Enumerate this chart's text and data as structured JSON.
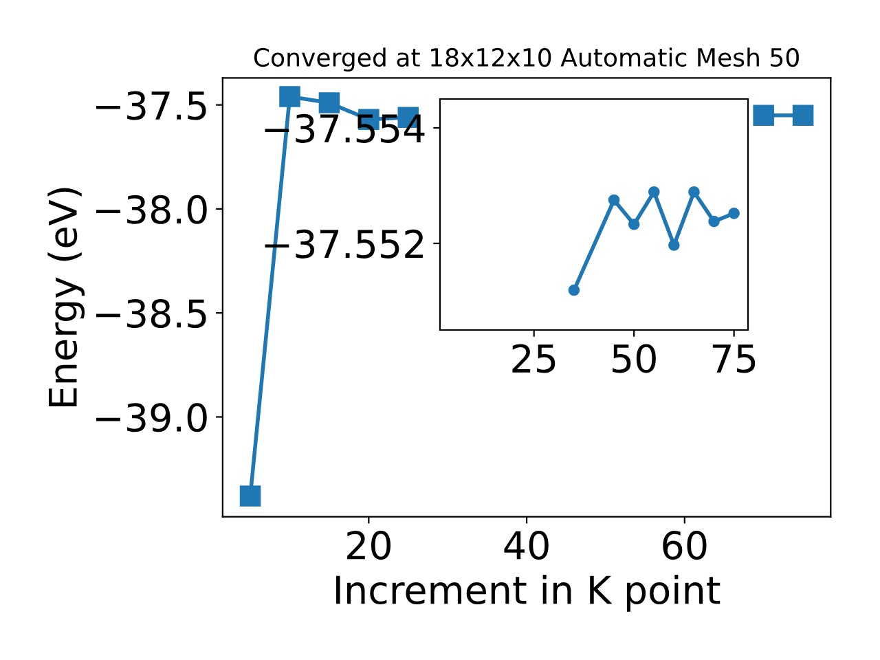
{
  "chart_data": [
    {
      "type": "line",
      "title": "Converged at 18x12x10 Automatic Mesh 50",
      "xlabel": "Increment in K point",
      "ylabel": "Energy (eV)",
      "x": [
        5,
        10,
        15,
        20,
        25,
        30,
        35,
        40,
        45,
        50,
        55,
        60,
        65,
        70,
        75
      ],
      "series": [
        {
          "color": "#1f77b4",
          "values": [
            -39.38,
            -37.46,
            -37.49,
            -37.57,
            -37.56,
            null,
            null,
            null,
            null,
            null,
            null,
            null,
            null,
            -37.55,
            -37.55
          ]
        }
      ],
      "marker": "square",
      "line_style": "solid",
      "grid": false,
      "legend": false,
      "xlim": [
        1.5,
        78.5
      ],
      "xticks": [
        20,
        40,
        60
      ],
      "ylim": [
        -39.48,
        -37.37
      ],
      "yticks": [
        {
          "value": -39.0,
          "label": "−39.0"
        },
        {
          "value": -38.5,
          "label": "−38.5"
        },
        {
          "value": -38.0,
          "label": "−38.0"
        },
        {
          "value": -37.5,
          "label": "−37.5"
        }
      ]
    },
    {
      "type": "line",
      "x": [
        35,
        45,
        50,
        55,
        60,
        65,
        70,
        75
      ],
      "series": [
        {
          "color": "#1f77b4",
          "values": [
            -37.55119,
            -37.55275,
            -37.55233,
            -37.55289,
            -37.55197,
            -37.55289,
            -37.55238,
            -37.55252
          ]
        }
      ],
      "marker": "circle",
      "line_style": "solid",
      "grid": false,
      "legend": false,
      "xlim": [
        1.5,
        78.5
      ],
      "xticks": [
        25,
        50,
        75
      ],
      "ylim": [
        -37.5505,
        -37.5545
      ],
      "yticks": [
        {
          "value": -37.554,
          "label": "−37.554"
        },
        {
          "value": -37.552,
          "label": "−37.552"
        }
      ]
    }
  ]
}
